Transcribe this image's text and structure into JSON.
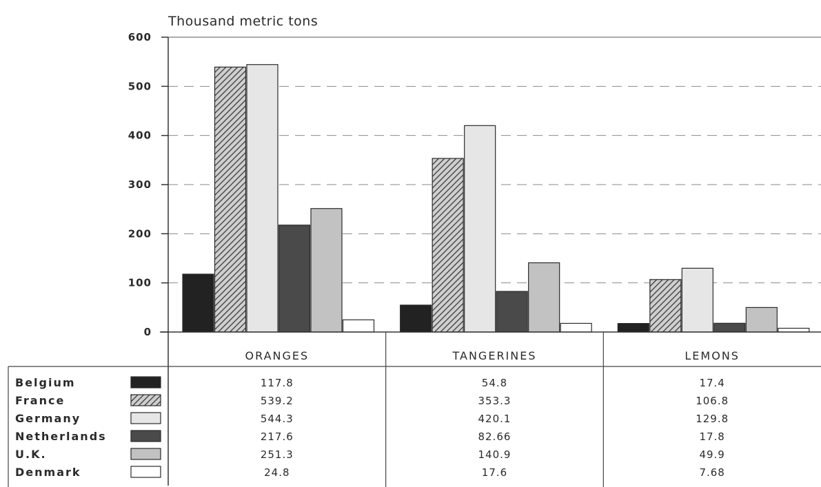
{
  "chart_data": {
    "type": "bar",
    "ylabel": "Thousand metric tons",
    "ylim": [
      0,
      600
    ],
    "yticks": [
      0,
      100,
      200,
      300,
      400,
      500,
      600
    ],
    "grid": "dashed horizontal",
    "legend_position": "bottom-left, as data table",
    "categories": [
      "ORANGES",
      "TANGERINES",
      "LEMONS"
    ],
    "series": [
      {
        "name": "Belgium",
        "values": [
          117.8,
          54.8,
          17.4
        ],
        "labels": [
          "117.8",
          "54.8",
          "17.4"
        ],
        "fill": "#222222"
      },
      {
        "name": "France",
        "values": [
          539.2,
          353.3,
          106.8
        ],
        "labels": [
          "539.2",
          "353.3",
          "106.8"
        ],
        "fill": "hatch"
      },
      {
        "name": "Germany",
        "values": [
          544.3,
          420.1,
          129.8
        ],
        "labels": [
          "544.3",
          "420.1",
          "129.8"
        ],
        "fill": "#e6e6e6"
      },
      {
        "name": "Netherlands",
        "values": [
          217.6,
          82.66,
          17.8
        ],
        "labels": [
          "217.6",
          "82.66",
          "17.8"
        ],
        "fill": "#4a4a4a"
      },
      {
        "name": "U.K.",
        "values": [
          251.3,
          140.9,
          49.9
        ],
        "labels": [
          "251.3",
          "140.9",
          "49.9"
        ],
        "fill": "#c2c2c2"
      },
      {
        "name": "Denmark",
        "values": [
          24.8,
          17.6,
          7.68
        ],
        "labels": [
          "24.8",
          "17.6",
          "7.68"
        ],
        "fill": "#ffffff"
      }
    ]
  }
}
